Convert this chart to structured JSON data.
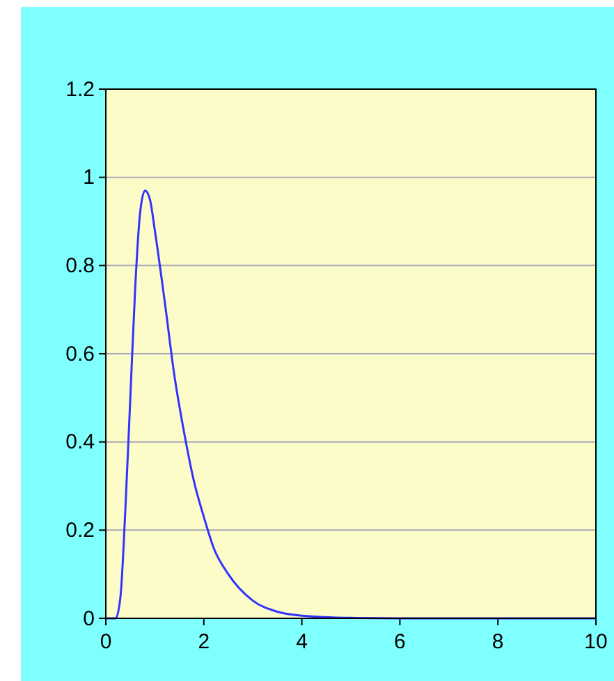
{
  "chart_data": {
    "type": "line",
    "x": [
      0,
      0.2,
      0.3,
      0.4,
      0.5,
      0.6,
      0.7,
      0.8,
      0.9,
      1.0,
      1.2,
      1.4,
      1.6,
      1.8,
      2.0,
      2.2,
      2.5,
      3.0,
      3.5,
      4.0,
      5.0,
      6.0,
      8.0,
      10.0
    ],
    "series": [
      {
        "color": "#3333ff",
        "values": [
          0,
          0,
          0.05,
          0.25,
          0.5,
          0.75,
          0.92,
          0.97,
          0.95,
          0.88,
          0.72,
          0.55,
          0.42,
          0.31,
          0.23,
          0.16,
          0.1,
          0.04,
          0.015,
          0.006,
          0.001,
          0,
          0,
          0
        ]
      }
    ],
    "xlim": [
      0,
      10
    ],
    "xticks": [
      0,
      2,
      4,
      6,
      8,
      10
    ],
    "ylim": [
      0,
      1.2
    ],
    "yticks": [
      0,
      0.2,
      0.4,
      0.6,
      0.8,
      1,
      1.2
    ],
    "grid": "y",
    "marker": "none",
    "line_style": "solid"
  }
}
